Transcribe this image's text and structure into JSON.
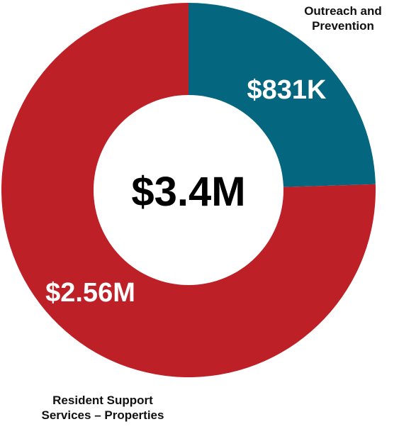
{
  "chart_data": {
    "type": "pie",
    "variant": "donut",
    "center_label": "$3.4M",
    "slices": [
      {
        "label_lines": [
          "Outreach and",
          "Prevention"
        ],
        "value": 831000,
        "value_label": "$831K",
        "color": "#05677f"
      },
      {
        "label_lines": [
          "Resident Support",
          "Services – Properties"
        ],
        "value": 2560000,
        "value_label": "$2.56M",
        "color": "#be2027"
      }
    ],
    "start_angle_deg": 0,
    "direction": "clockwise",
    "legend": "none"
  },
  "colors": {
    "label_text": "#111111",
    "value_text": "#ffffff",
    "center_text": "#000000",
    "background": "#ffffff"
  }
}
